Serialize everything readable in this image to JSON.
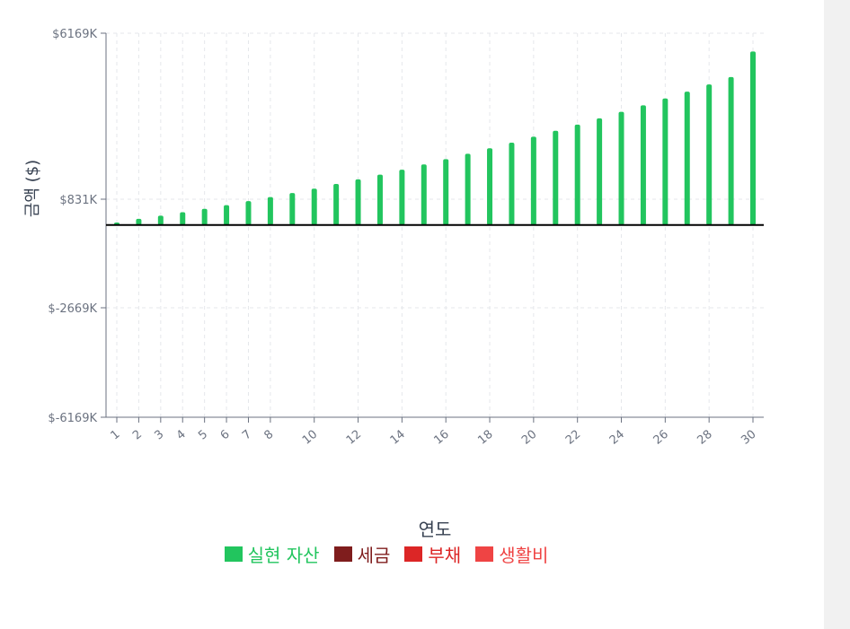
{
  "chart_data": {
    "type": "bar",
    "xlabel": "연도",
    "ylabel": "금액 ($)",
    "ylim": [
      -6169,
      6169
    ],
    "y_ticks": [
      "$6169K",
      "$831K",
      "$-2669K",
      "$-6169K"
    ],
    "y_tick_values": [
      6169,
      831,
      -2669,
      -6169
    ],
    "x_ticks": [
      "1",
      "2",
      "3",
      "4",
      "5",
      "6",
      "7",
      "8",
      "10",
      "12",
      "14",
      "16",
      "18",
      "20",
      "22",
      "24",
      "26",
      "28",
      "30"
    ],
    "x": [
      1,
      2,
      3,
      4,
      5,
      6,
      7,
      8,
      9,
      10,
      11,
      12,
      13,
      14,
      15,
      16,
      17,
      18,
      19,
      20,
      21,
      22,
      23,
      24,
      25,
      26,
      27,
      28,
      29,
      30
    ],
    "grid": true,
    "series": [
      {
        "name": "실현 자산",
        "color": "#22c55e",
        "values": [
          80,
          200,
          300,
          410,
          520,
          640,
          770,
          900,
          1030,
          1170,
          1320,
          1470,
          1620,
          1780,
          1950,
          2120,
          2290,
          2470,
          2650,
          2840,
          3030,
          3230,
          3430,
          3640,
          3850,
          4070,
          4290,
          4520,
          4760,
          5580
        ]
      }
    ],
    "legend": [
      {
        "name": "실현 자산",
        "color": "#22c55e"
      },
      {
        "name": "세금",
        "color": "#7f1d1d"
      },
      {
        "name": "부채",
        "color": "#dc2626"
      },
      {
        "name": "생활비",
        "color": "#ef4444"
      }
    ],
    "legend_position": "bottom"
  }
}
